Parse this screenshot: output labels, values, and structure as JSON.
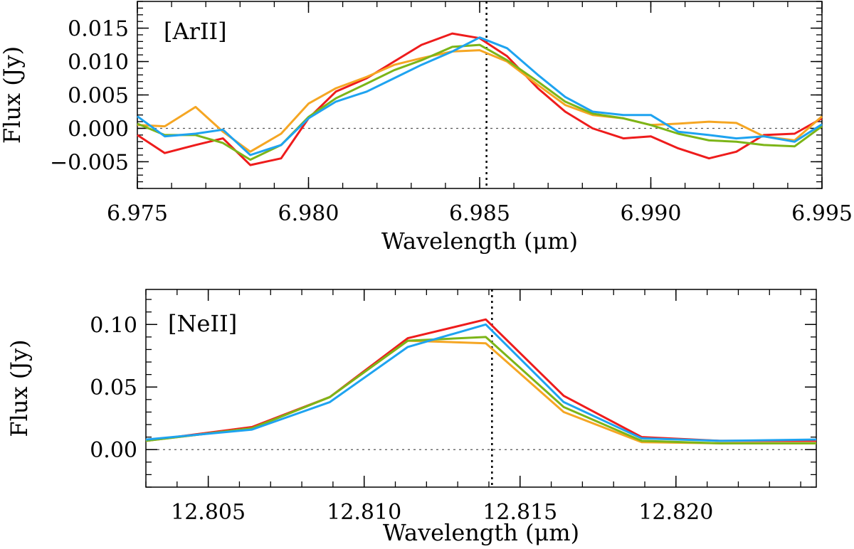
{
  "chart_data": [
    {
      "type": "line",
      "annotation": "[ArII]",
      "xlabel": "Wavelength (μm)",
      "ylabel": "Flux (Jy)",
      "xlim": [
        6.975,
        6.995
      ],
      "ylim": [
        -0.009,
        0.019
      ],
      "xticks": [
        6.975,
        6.98,
        6.985,
        6.99,
        6.995
      ],
      "xtick_labels": [
        "6.975",
        "6.980",
        "6.985",
        "6.990",
        "6.995"
      ],
      "yticks": [
        -0.005,
        0.0,
        0.005,
        0.01,
        0.015
      ],
      "ytick_labels": [
        "−0.005",
        "0.000",
        "0.005",
        "0.010",
        "0.015"
      ],
      "reference_hline": 0.0,
      "reference_vline": 6.9852,
      "x": [
        6.975,
        6.9758,
        6.9767,
        6.9775,
        6.9783,
        6.9792,
        6.98,
        6.9808,
        6.9817,
        6.9825,
        6.9833,
        6.9842,
        6.985,
        6.9858,
        6.9867,
        6.9875,
        6.9883,
        6.9892,
        6.99,
        6.9908,
        6.9917,
        6.9925,
        6.9933,
        6.9942,
        6.995
      ],
      "series": [
        {
          "color": "#ee1c1c",
          "values": [
            -0.001,
            -0.0037,
            -0.0025,
            -0.0015,
            -0.0055,
            -0.0045,
            0.0015,
            0.0055,
            0.0075,
            0.01,
            0.0125,
            0.0142,
            0.0135,
            0.0108,
            0.006,
            0.0025,
            0.0,
            -0.0015,
            -0.0012,
            -0.003,
            -0.0045,
            -0.0035,
            -0.001,
            -0.0008,
            0.0015
          ]
        },
        {
          "color": "#f5a623",
          "values": [
            0.0005,
            0.0003,
            0.0032,
            -0.0005,
            -0.0035,
            -0.0008,
            0.0037,
            0.006,
            0.0077,
            0.0095,
            0.0105,
            0.0115,
            0.0117,
            0.01,
            0.0065,
            0.0035,
            0.002,
            0.0015,
            0.0005,
            0.0007,
            0.001,
            0.0008,
            -0.0012,
            -0.0018,
            0.0018
          ]
        },
        {
          "color": "#7cb518",
          "values": [
            0.0007,
            -0.001,
            -0.001,
            -0.0022,
            -0.0047,
            -0.0025,
            0.0017,
            0.0045,
            0.0067,
            0.0087,
            0.0102,
            0.0122,
            0.0125,
            0.0102,
            0.007,
            0.004,
            0.0022,
            0.0015,
            0.0005,
            -0.0008,
            -0.0018,
            -0.002,
            -0.0025,
            -0.0027,
            0.0003
          ]
        },
        {
          "color": "#1ea3f0",
          "values": [
            0.0018,
            -0.0012,
            -0.0008,
            -0.0002,
            -0.004,
            -0.0025,
            0.0015,
            0.004,
            0.0055,
            0.0075,
            0.0095,
            0.0115,
            0.0136,
            0.012,
            0.008,
            0.0047,
            0.0025,
            0.002,
            0.002,
            -0.0005,
            -0.001,
            -0.0015,
            -0.0012,
            -0.002,
            0.0006
          ]
        }
      ]
    },
    {
      "type": "line",
      "annotation": "[NeII]",
      "xlabel": "Wavelength (μm)",
      "ylabel": "Flux (Jy)",
      "xlim": [
        12.803,
        12.8245
      ],
      "ylim": [
        -0.03,
        0.128
      ],
      "xticks": [
        12.805,
        12.81,
        12.815,
        12.82
      ],
      "xtick_labels": [
        "12.805",
        "12.810",
        "12.815",
        "12.820"
      ],
      "yticks": [
        0.0,
        0.05,
        0.1
      ],
      "ytick_labels": [
        "0.00",
        "0.05",
        "0.10"
      ],
      "reference_hline": 0.0,
      "reference_vline": 12.8141,
      "x": [
        12.803,
        12.8064,
        12.8089,
        12.8114,
        12.8139,
        12.8164,
        12.8189,
        12.8214,
        12.8245
      ],
      "series": [
        {
          "color": "#ee1c1c",
          "values": [
            0.007,
            0.018,
            0.042,
            0.089,
            0.104,
            0.043,
            0.01,
            0.007,
            0.007
          ]
        },
        {
          "color": "#f5a623",
          "values": [
            0.007,
            0.017,
            0.042,
            0.087,
            0.085,
            0.03,
            0.006,
            0.005,
            0.005
          ]
        },
        {
          "color": "#7cb518",
          "values": [
            0.007,
            0.017,
            0.042,
            0.087,
            0.09,
            0.034,
            0.007,
            0.005,
            0.005
          ]
        },
        {
          "color": "#1ea3f0",
          "values": [
            0.008,
            0.016,
            0.038,
            0.082,
            0.1,
            0.038,
            0.009,
            0.007,
            0.008
          ]
        }
      ]
    }
  ]
}
